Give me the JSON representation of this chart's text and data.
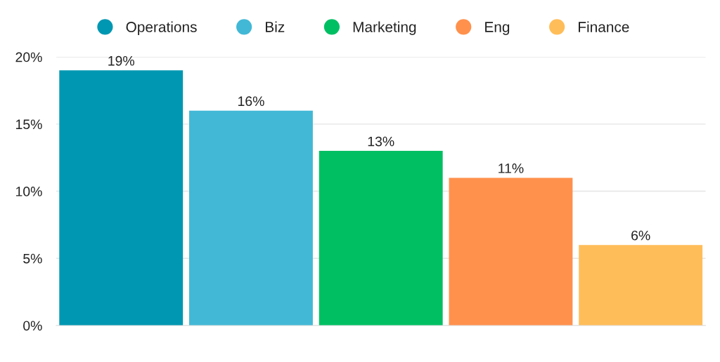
{
  "chart_data": {
    "type": "bar",
    "categories": [
      null
    ],
    "series": [
      {
        "name": "Operations",
        "color": "#0097b2",
        "values": [
          19
        ],
        "value_labels": [
          "19%"
        ]
      },
      {
        "name": "Biz",
        "color": "#42b8d6",
        "values": [
          16
        ],
        "value_labels": [
          "16%"
        ]
      },
      {
        "name": "Marketing",
        "color": "#00bf63",
        "values": [
          13
        ],
        "value_labels": [
          "13%"
        ]
      },
      {
        "name": "Eng",
        "color": "#ff914d",
        "values": [
          11
        ],
        "value_labels": [
          "11%"
        ]
      },
      {
        "name": "Finance",
        "color": "#ffbd59",
        "values": [
          6
        ],
        "value_labels": [
          "6%"
        ]
      }
    ],
    "ylim": [
      0,
      20
    ],
    "yticks": [
      {
        "value": 0,
        "label": "0%"
      },
      {
        "value": 5,
        "label": "5%"
      },
      {
        "value": 10,
        "label": "10%"
      },
      {
        "value": 15,
        "label": "15%"
      },
      {
        "value": 20,
        "label": "20%"
      }
    ],
    "grid": "y",
    "legend": "top"
  }
}
